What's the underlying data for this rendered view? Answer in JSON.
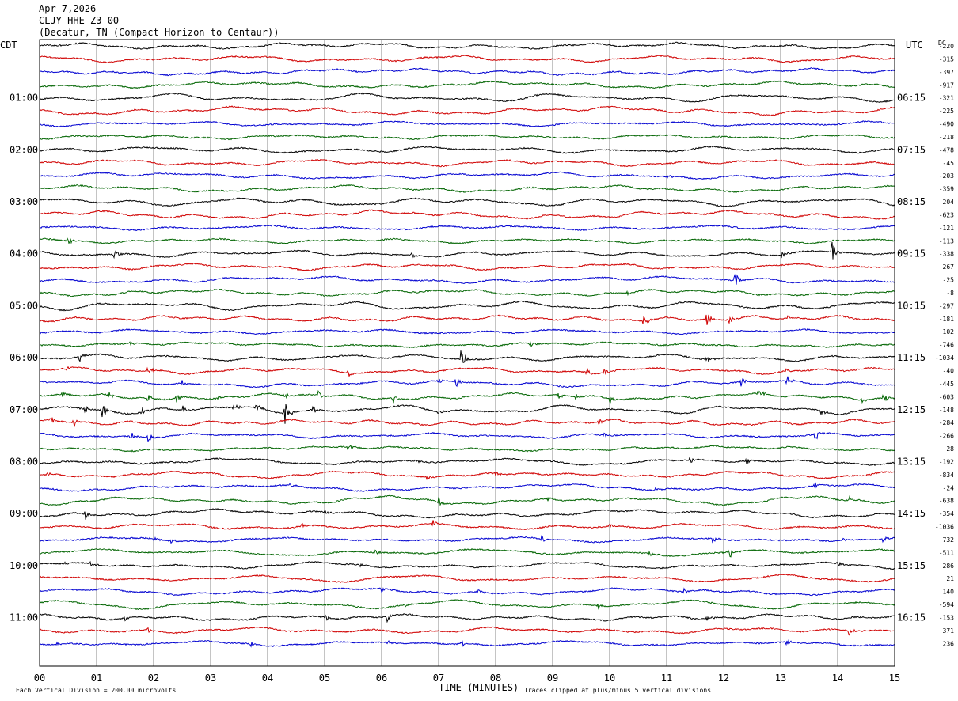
{
  "header": {
    "date": "Apr 7,2026",
    "station": "CLJY HHE Z3 00",
    "location": "(Decatur, TN (Compact Horizon to Centaur))"
  },
  "chart_data": {
    "type": "line",
    "chart_kind": "helicorder seismogram",
    "left_axis_label": "CDT",
    "right_axis_label": "UTC",
    "dc_label": "DC",
    "xlabel": "TIME (MINUTES)",
    "x_ticks": [
      "00",
      "01",
      "02",
      "03",
      "04",
      "05",
      "06",
      "07",
      "08",
      "09",
      "10",
      "11",
      "12",
      "13",
      "14",
      "15"
    ],
    "xlim": [
      0,
      15
    ],
    "grid": true,
    "left_hour_labels": [
      "01:00",
      "02:00",
      "03:00",
      "04:00",
      "05:00",
      "06:00",
      "07:00",
      "08:00",
      "09:00",
      "10:00",
      "11:00"
    ],
    "right_hour_labels": [
      "06:15",
      "07:15",
      "08:15",
      "09:15",
      "10:15",
      "11:15",
      "12:15",
      "13:15",
      "14:15",
      "15:15",
      "16:15"
    ],
    "trace_colors": [
      "#000000",
      "#d00000",
      "#0000d0",
      "#006400"
    ],
    "dc_offsets": [
      -220,
      -315,
      -397,
      -917,
      -321,
      -225,
      -490,
      -218,
      -478,
      -45,
      -203,
      -359,
      204,
      -623,
      -121,
      -113,
      -338,
      267,
      -25,
      -8,
      -297,
      -181,
      102,
      -746,
      -1034,
      -40,
      -445,
      -603,
      -148,
      -284,
      -266,
      28,
      -192,
      -834,
      -24,
      -638,
      -354,
      -1036,
      732,
      -511,
      286,
      21,
      140,
      -594,
      -153,
      371,
      236
    ],
    "footer_left": "Each Vertical Division =  200.00 microvolts",
    "footer_right": "Traces clipped at plus/minus 5 vertical divisions",
    "events": [
      [
        10,
        11.0,
        4
      ],
      [
        15,
        0.5,
        6
      ],
      [
        16,
        1.3,
        8
      ],
      [
        16,
        6.5,
        5
      ],
      [
        16,
        13.0,
        5
      ],
      [
        16,
        13.9,
        16
      ],
      [
        18,
        12.2,
        12
      ],
      [
        19,
        10.3,
        3
      ],
      [
        21,
        10.6,
        9
      ],
      [
        21,
        11.7,
        10
      ],
      [
        21,
        12.1,
        7
      ],
      [
        21,
        13.1,
        4
      ],
      [
        23,
        1.6,
        6
      ],
      [
        23,
        8.6,
        6
      ],
      [
        24,
        0.7,
        7
      ],
      [
        24,
        7.4,
        18
      ],
      [
        24,
        11.7,
        8
      ],
      [
        25,
        0.4,
        6
      ],
      [
        25,
        1.9,
        8
      ],
      [
        25,
        5.4,
        5
      ],
      [
        25,
        9.6,
        6
      ],
      [
        25,
        9.9,
        5
      ],
      [
        25,
        13.1,
        5
      ],
      [
        26,
        2.5,
        7
      ],
      [
        26,
        7.0,
        4
      ],
      [
        26,
        7.3,
        8
      ],
      [
        26,
        12.3,
        9
      ],
      [
        26,
        13.1,
        8
      ],
      [
        27,
        0.4,
        5
      ],
      [
        27,
        1.2,
        8
      ],
      [
        27,
        1.9,
        5
      ],
      [
        27,
        2.4,
        6
      ],
      [
        27,
        3.1,
        5
      ],
      [
        27,
        4.3,
        8
      ],
      [
        27,
        4.9,
        9
      ],
      [
        27,
        6.2,
        8
      ],
      [
        27,
        9.1,
        6
      ],
      [
        27,
        9.4,
        5
      ],
      [
        27,
        10.0,
        5
      ],
      [
        27,
        12.6,
        9
      ],
      [
        27,
        14.4,
        4
      ],
      [
        27,
        14.8,
        9
      ],
      [
        28,
        0.8,
        6
      ],
      [
        28,
        1.1,
        10
      ],
      [
        28,
        1.8,
        9
      ],
      [
        28,
        2.5,
        7
      ],
      [
        28,
        3.4,
        9
      ],
      [
        28,
        3.8,
        9
      ],
      [
        28,
        4.3,
        16
      ],
      [
        28,
        4.8,
        8
      ],
      [
        28,
        7.0,
        4
      ],
      [
        28,
        13.7,
        6
      ],
      [
        29,
        0.2,
        7
      ],
      [
        29,
        0.6,
        7
      ],
      [
        29,
        9.8,
        4
      ],
      [
        30,
        1.6,
        6
      ],
      [
        30,
        1.9,
        8
      ],
      [
        30,
        9.9,
        4
      ],
      [
        30,
        13.6,
        10
      ],
      [
        31,
        5.4,
        6
      ],
      [
        32,
        6.6,
        4
      ],
      [
        32,
        11.4,
        6
      ],
      [
        32,
        12.4,
        5
      ],
      [
        33,
        0.1,
        5
      ],
      [
        33,
        6.8,
        4
      ],
      [
        33,
        8.0,
        5
      ],
      [
        34,
        4.4,
        4
      ],
      [
        34,
        10.8,
        4
      ],
      [
        34,
        13.6,
        5
      ],
      [
        35,
        7.0,
        6
      ],
      [
        35,
        8.9,
        5
      ],
      [
        35,
        14.2,
        7
      ],
      [
        36,
        0.8,
        8
      ],
      [
        36,
        5.0,
        3
      ],
      [
        37,
        4.6,
        4
      ],
      [
        37,
        6.9,
        4
      ],
      [
        37,
        10.0,
        5
      ],
      [
        38,
        2.0,
        4
      ],
      [
        38,
        2.3,
        6
      ],
      [
        38,
        8.8,
        5
      ],
      [
        38,
        11.8,
        7
      ],
      [
        38,
        14.1,
        4
      ],
      [
        38,
        14.8,
        6
      ],
      [
        39,
        5.9,
        6
      ],
      [
        39,
        10.7,
        4
      ],
      [
        39,
        12.1,
        8
      ],
      [
        40,
        0.4,
        4
      ],
      [
        40,
        0.9,
        4
      ],
      [
        40,
        5.6,
        4
      ],
      [
        40,
        14.0,
        4
      ],
      [
        42,
        6.0,
        5
      ],
      [
        42,
        7.7,
        4
      ],
      [
        42,
        11.3,
        4
      ],
      [
        43,
        6.4,
        4
      ],
      [
        43,
        9.8,
        5
      ],
      [
        43,
        11.7,
        6
      ],
      [
        44,
        1.5,
        4
      ],
      [
        44,
        5.0,
        6
      ],
      [
        44,
        6.1,
        8
      ],
      [
        44,
        11.7,
        4
      ],
      [
        45,
        1.9,
        6
      ],
      [
        45,
        14.2,
        8
      ],
      [
        46,
        0.3,
        4
      ],
      [
        46,
        3.7,
        4
      ],
      [
        46,
        6.1,
        4
      ],
      [
        46,
        7.4,
        4
      ],
      [
        46,
        13.1,
        4
      ]
    ]
  }
}
